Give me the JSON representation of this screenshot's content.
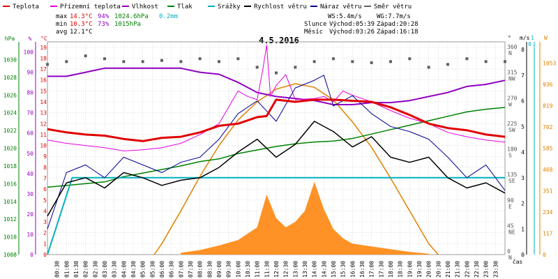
{
  "header": {
    "legend": [
      {
        "label": "Teplota",
        "color": "#e00000"
      },
      {
        "label": "Přízemní teplota",
        "color": "#e000e0"
      },
      {
        "label": "Vlhkost",
        "color": "#9000c0"
      },
      {
        "label": "Tlak",
        "color": "#008000"
      },
      {
        "label": "Srážky",
        "color": "#00b0c0"
      },
      {
        "label": "Rychlost větru",
        "color": "#000000"
      },
      {
        "label": "Náraz větru",
        "color": "#000090"
      },
      {
        "label": "Směr větru",
        "color": "#606060"
      }
    ],
    "stats": [
      {
        "label": "max",
        "temp": "14.3°C",
        "hum": "94%",
        "pres": "1024.6hPa",
        "rain": "0.2mm"
      },
      {
        "label": "min",
        "temp": "10.3°C",
        "hum": "73%",
        "pres": "1015hPa",
        "rain": ""
      },
      {
        "label": "avg",
        "temp": "12.1°C",
        "hum": "",
        "pres": "",
        "rain": ""
      }
    ],
    "wind": {
      "ws": "WS:5.4m/s",
      "wg": "WG:7.7m/s"
    },
    "sun": {
      "label": "Slunce",
      "rise": "Východ:05:39",
      "set": "Západ:20:28"
    },
    "moon": {
      "label": "Měsíc",
      "rise": "Východ:03:26",
      "set": "Západ:16:18"
    },
    "date": "4.5.2016"
  },
  "chart_data": {
    "type": "line",
    "title": "4.5.2016",
    "x_unit": "hour",
    "xlim": [
      0,
      24
    ],
    "x_ticks": [
      "00:30",
      "01:00",
      "01:30",
      "02:00",
      "02:30",
      "03:00",
      "03:30",
      "04:00",
      "04:30",
      "05:00",
      "05:30",
      "06:00",
      "06:30",
      "07:00",
      "07:30",
      "08:00",
      "08:30",
      "09:00",
      "09:30",
      "10:00",
      "10:30",
      "11:00",
      "11:30",
      "12:00",
      "12:30",
      "13:00",
      "13:30",
      "14:00",
      "14:30",
      "15:00",
      "15:30",
      "16:00",
      "16:30",
      "17:00",
      "17:30",
      "18:00",
      "18:30",
      "19:00",
      "19:30",
      "20:00",
      "20:30",
      "21:00",
      "21:30",
      "22:00",
      "22:30",
      "23:00",
      "23:30"
    ],
    "xlabel": "čas",
    "axes": {
      "pressure": {
        "unit": "hPa",
        "range": [
          1008,
          1032
        ],
        "ticks": [
          "1008",
          "1010",
          "1012",
          "1014",
          "1016",
          "1018",
          "1020",
          "1022",
          "1024",
          "1026",
          "1028",
          "1030"
        ]
      },
      "humidity": {
        "unit": "%",
        "range": [
          0,
          105
        ],
        "ticks": [
          "0",
          "10",
          "20",
          "30",
          "40",
          "50",
          "60",
          "70",
          "80",
          "90",
          "100"
        ]
      },
      "temperature": {
        "unit": "°C",
        "range": [
          0,
          19.5
        ],
        "ticks": [
          "0",
          "1",
          "2",
          "3",
          "4",
          "5",
          "6",
          "7",
          "8",
          "9",
          "10",
          "11",
          "12",
          "13",
          "14",
          "15",
          "16",
          "17",
          "18",
          "19"
        ]
      },
      "direction": {
        "unit": "°",
        "ticks": [
          "0",
          "45",
          "90",
          "135",
          "180",
          "225",
          "270",
          "315",
          "360"
        ],
        "names": [
          "N",
          "NE",
          "E",
          "SE",
          "S",
          "SW",
          "W",
          "NW",
          "N"
        ]
      },
      "wind": {
        "unit": "m/s",
        "range": [
          0,
          8.3
        ],
        "ticks": [
          "0",
          "1",
          "2",
          "3",
          "4",
          "5",
          "6",
          "7",
          "8"
        ]
      },
      "rain_top": {
        "unit": "mm",
        "ticks": [
          "0",
          "1"
        ]
      },
      "solar": {
        "unit": "W",
        "range": [
          0,
          1170
        ],
        "ticks": [
          "0",
          "117",
          "234",
          "351",
          "468",
          "585",
          "702",
          "819",
          "936",
          "1053"
        ]
      }
    },
    "series": [
      {
        "name": "Teplota",
        "axis": "temperature",
        "x": [
          0,
          1,
          2,
          3,
          4,
          5,
          6,
          7,
          8,
          9,
          10,
          11,
          11.5,
          12,
          13,
          14,
          15,
          16,
          17,
          18,
          19,
          20,
          21,
          22,
          23,
          24
        ],
        "values": [
          11.5,
          11.2,
          11,
          10.9,
          10.6,
          10.4,
          10.7,
          10.8,
          11.2,
          11.8,
          12,
          12.6,
          12.7,
          14.2,
          14,
          14.2,
          14.2,
          14.1,
          14,
          13.5,
          12.8,
          12,
          11.6,
          11.4,
          11,
          10.8
        ]
      },
      {
        "name": "Přízemní teplota",
        "axis": "temperature",
        "x": [
          0,
          1,
          2,
          3,
          4,
          5,
          6,
          7,
          8,
          9,
          9.5,
          10,
          10.5,
          11,
          11.3,
          11.5,
          11.7,
          12,
          12.5,
          13,
          14,
          14.5,
          15,
          15.5,
          16,
          17,
          18,
          19,
          20,
          21,
          22,
          23,
          24
        ],
        "values": [
          10.5,
          10.2,
          10,
          9.8,
          9.5,
          9.6,
          9.8,
          10.2,
          11,
          12,
          13.5,
          15,
          14.5,
          14.2,
          17,
          19.2,
          14.5,
          15.5,
          16.5,
          14.2,
          14.3,
          14.5,
          14,
          15,
          14.6,
          14,
          13.2,
          12.5,
          12,
          11.2,
          10.8,
          10.5,
          10.3
        ]
      },
      {
        "name": "Vlhkost",
        "axis": "humidity",
        "x": [
          0,
          1,
          2,
          3,
          4,
          5,
          6,
          7,
          8,
          9,
          10,
          11,
          12,
          13,
          14,
          15,
          16,
          17,
          18,
          19,
          20,
          21,
          22,
          23,
          24
        ],
        "values": [
          88,
          88,
          90,
          92,
          92,
          92,
          92,
          92,
          90,
          89,
          85,
          80,
          78,
          77,
          76,
          74,
          74,
          75,
          75,
          76,
          78,
          80,
          83,
          84,
          86
        ]
      },
      {
        "name": "Tlak",
        "axis": "pressure",
        "x": [
          0,
          1,
          2,
          3,
          4,
          5,
          6,
          7,
          8,
          9,
          10,
          11,
          12,
          13,
          14,
          15,
          16,
          17,
          18,
          19,
          20,
          21,
          22,
          23,
          24
        ],
        "values": [
          1015.6,
          1015.8,
          1016,
          1016.2,
          1016.8,
          1017.2,
          1017.6,
          1018,
          1018.5,
          1018.8,
          1019.4,
          1019.8,
          1020.2,
          1020.5,
          1020.7,
          1020.8,
          1021.1,
          1021.6,
          1022.1,
          1022.6,
          1023.1,
          1023.6,
          1024.1,
          1024.4,
          1024.6
        ]
      },
      {
        "name": "Srážky",
        "axis": "wind",
        "x": [
          0,
          1.3,
          24
        ],
        "values": [
          0,
          3,
          3
        ]
      },
      {
        "name": "Rychlost větru",
        "axis": "wind",
        "x": [
          0,
          1,
          2,
          3,
          4,
          5,
          6,
          7,
          8,
          9,
          10,
          11,
          12,
          13,
          14,
          15,
          16,
          17,
          18,
          19,
          20,
          21,
          22,
          23,
          24
        ],
        "values": [
          1.5,
          2.8,
          3.0,
          2.6,
          3.2,
          3.0,
          2.7,
          2.9,
          3.0,
          3.4,
          4.0,
          4.5,
          3.8,
          4.3,
          5.2,
          4.8,
          4.2,
          4.6,
          3.8,
          3.6,
          3.8,
          3.0,
          2.6,
          2.8,
          2.4
        ]
      },
      {
        "name": "Náraz větru",
        "axis": "wind",
        "x": [
          0,
          1,
          2,
          3,
          4,
          5,
          6,
          7,
          8,
          9,
          10,
          11,
          12,
          13,
          14,
          14.5,
          15,
          16,
          17,
          18,
          19,
          20,
          21,
          22,
          23,
          24
        ],
        "values": [
          1.0,
          3.2,
          3.5,
          3.0,
          3.8,
          3.5,
          3.2,
          3.6,
          3.8,
          4.5,
          5.5,
          6.0,
          5.2,
          6.5,
          6.8,
          7.0,
          5.8,
          6.2,
          5.5,
          5.0,
          4.8,
          4.5,
          3.8,
          3.0,
          3.5,
          2.5
        ]
      },
      {
        "name": "Směr větru",
        "axis": "direction",
        "x": [
          0,
          1,
          2,
          3,
          4,
          5,
          6,
          7,
          8,
          9,
          10,
          11,
          12,
          13,
          14,
          15,
          16,
          17,
          18,
          19,
          20,
          21,
          22,
          23,
          24
        ],
        "values": [
          335,
          340,
          350,
          345,
          340,
          340,
          342,
          340,
          345,
          340,
          345,
          330,
          320,
          330,
          340,
          345,
          340,
          338,
          340,
          345,
          330,
          335,
          345,
          340,
          340
        ]
      },
      {
        "name": "Solar",
        "axis": "solar",
        "x": [
          5.6,
          6,
          7,
          8,
          9,
          10,
          11,
          12,
          13,
          14,
          15,
          16,
          17,
          18,
          19,
          20,
          20.5
        ],
        "values": [
          0,
          60,
          240,
          430,
          600,
          740,
          840,
          910,
          940,
          920,
          850,
          730,
          590,
          420,
          240,
          60,
          0
        ]
      },
      {
        "name": "Radiation",
        "axis": "solar",
        "x": [
          7,
          8,
          9,
          10,
          11,
          11.5,
          12,
          12.5,
          13,
          13.5,
          14,
          14.5,
          15,
          15.5,
          16,
          17,
          18,
          19,
          20
        ],
        "values": [
          10,
          25,
          50,
          80,
          150,
          330,
          200,
          150,
          180,
          240,
          400,
          250,
          140,
          90,
          60,
          45,
          30,
          15,
          5
        ]
      }
    ]
  }
}
